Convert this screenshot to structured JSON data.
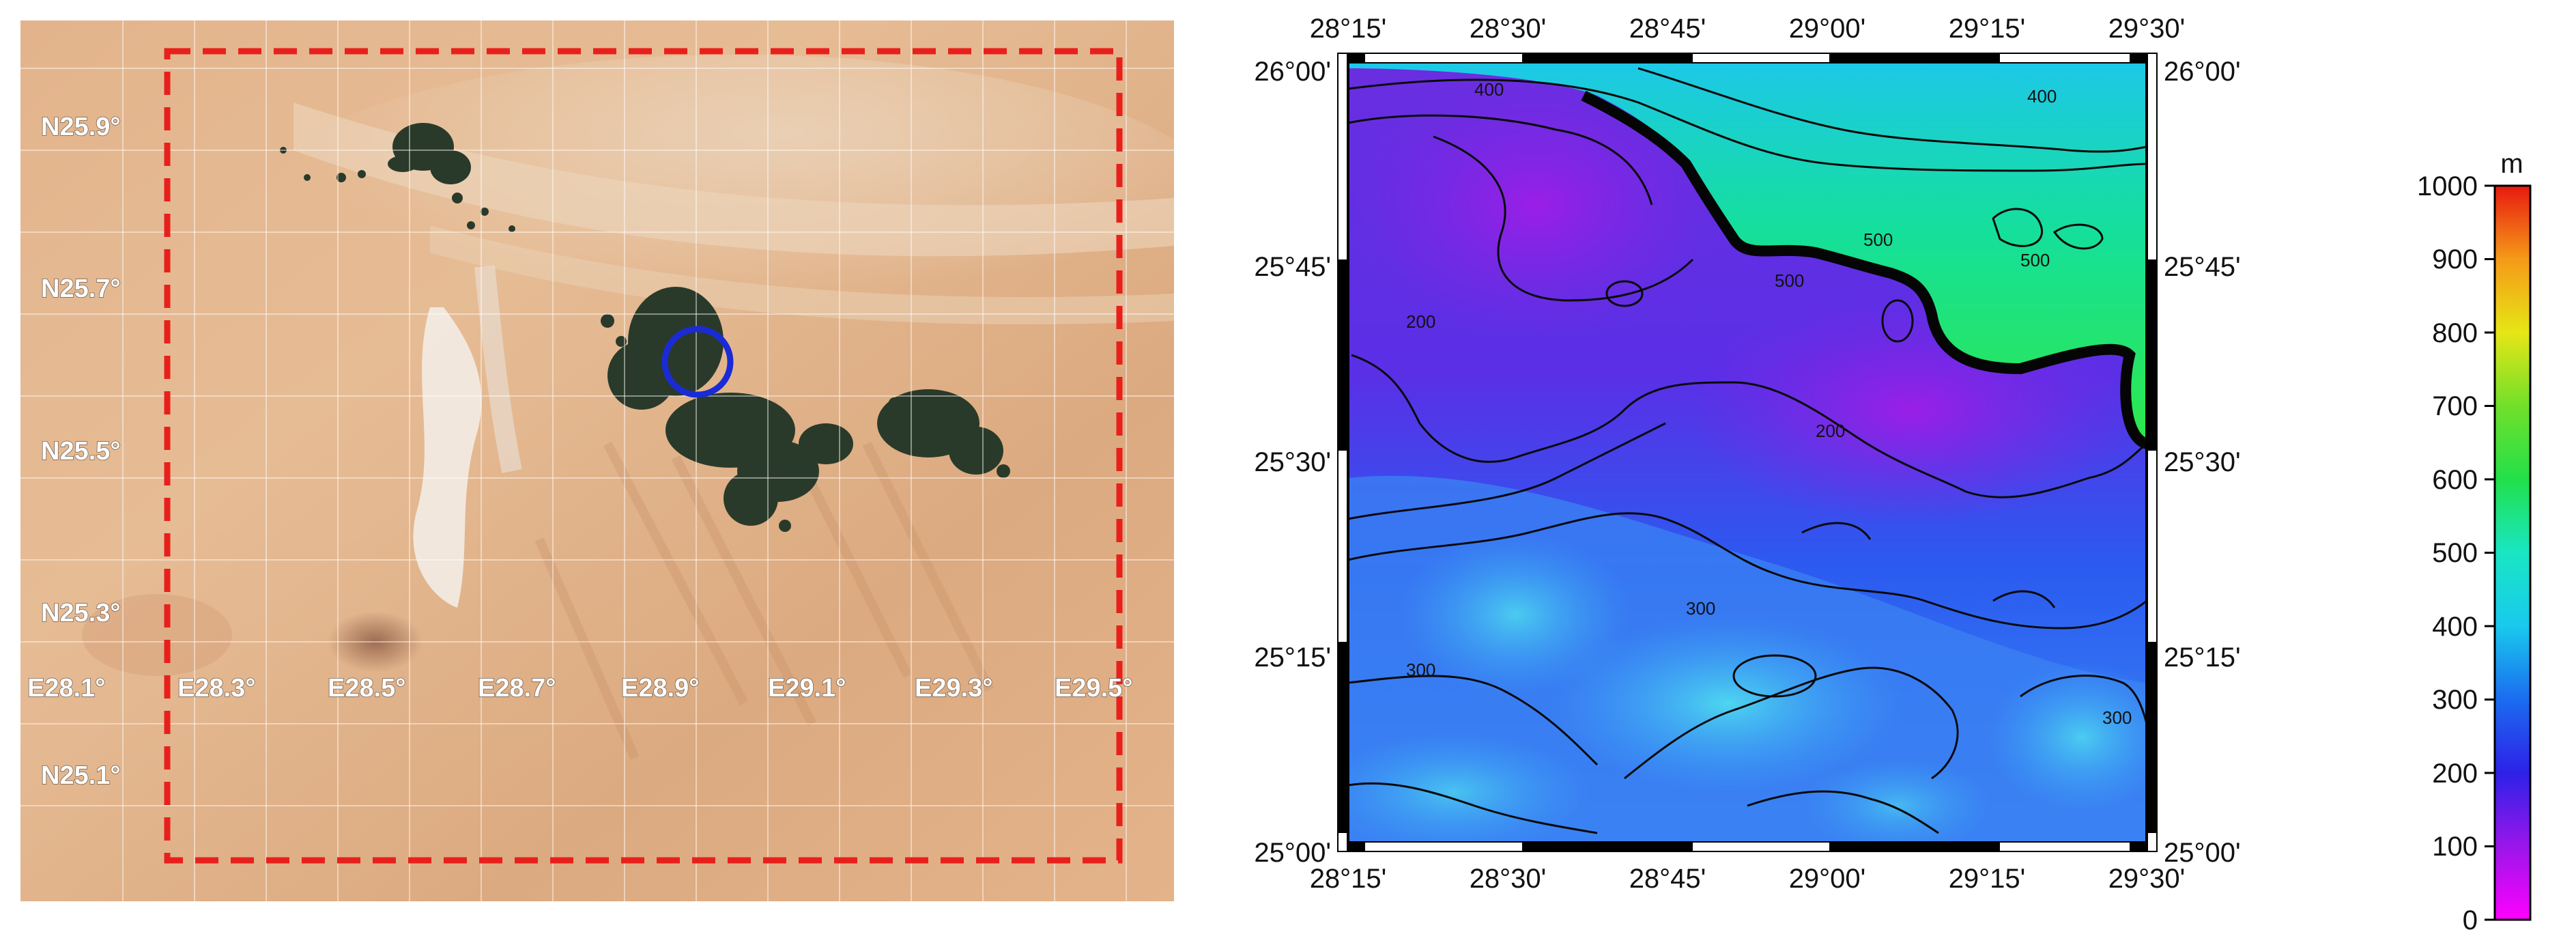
{
  "satellite": {
    "lat_labels": [
      "N25.9°",
      "N25.7°",
      "N25.5°",
      "N25.3°",
      "N25.1°"
    ],
    "lon_labels": [
      "E28.1°",
      "E28.3°",
      "E28.5°",
      "E28.7°",
      "E28.9°",
      "E29.1°",
      "E29.3°",
      "E29.5°"
    ],
    "box_color": "#e8201c",
    "marker_color": "#1a2bd6"
  },
  "elevation_map": {
    "top_ticks": [
      "28°15'",
      "28°30'",
      "28°45'",
      "29°00'",
      "29°15'",
      "29°30'"
    ],
    "bottom_ticks": [
      "28°15'",
      "28°30'",
      "28°45'",
      "29°00'",
      "29°15'",
      "29°30'"
    ],
    "left_ticks": [
      "26°00'",
      "25°45'",
      "25°30'",
      "25°15'",
      "25°00'"
    ],
    "right_ticks": [
      "26°00'",
      "25°45'",
      "25°30'",
      "25°15'",
      "25°00'"
    ],
    "contour_labels": [
      "400",
      "400",
      "500",
      "500",
      "500",
      "200",
      "200",
      "300",
      "300",
      "300"
    ]
  },
  "colorbar": {
    "unit": "m",
    "ticks": [
      "1000",
      "900",
      "800",
      "700",
      "600",
      "500",
      "400",
      "300",
      "200",
      "100",
      "0"
    ]
  }
}
